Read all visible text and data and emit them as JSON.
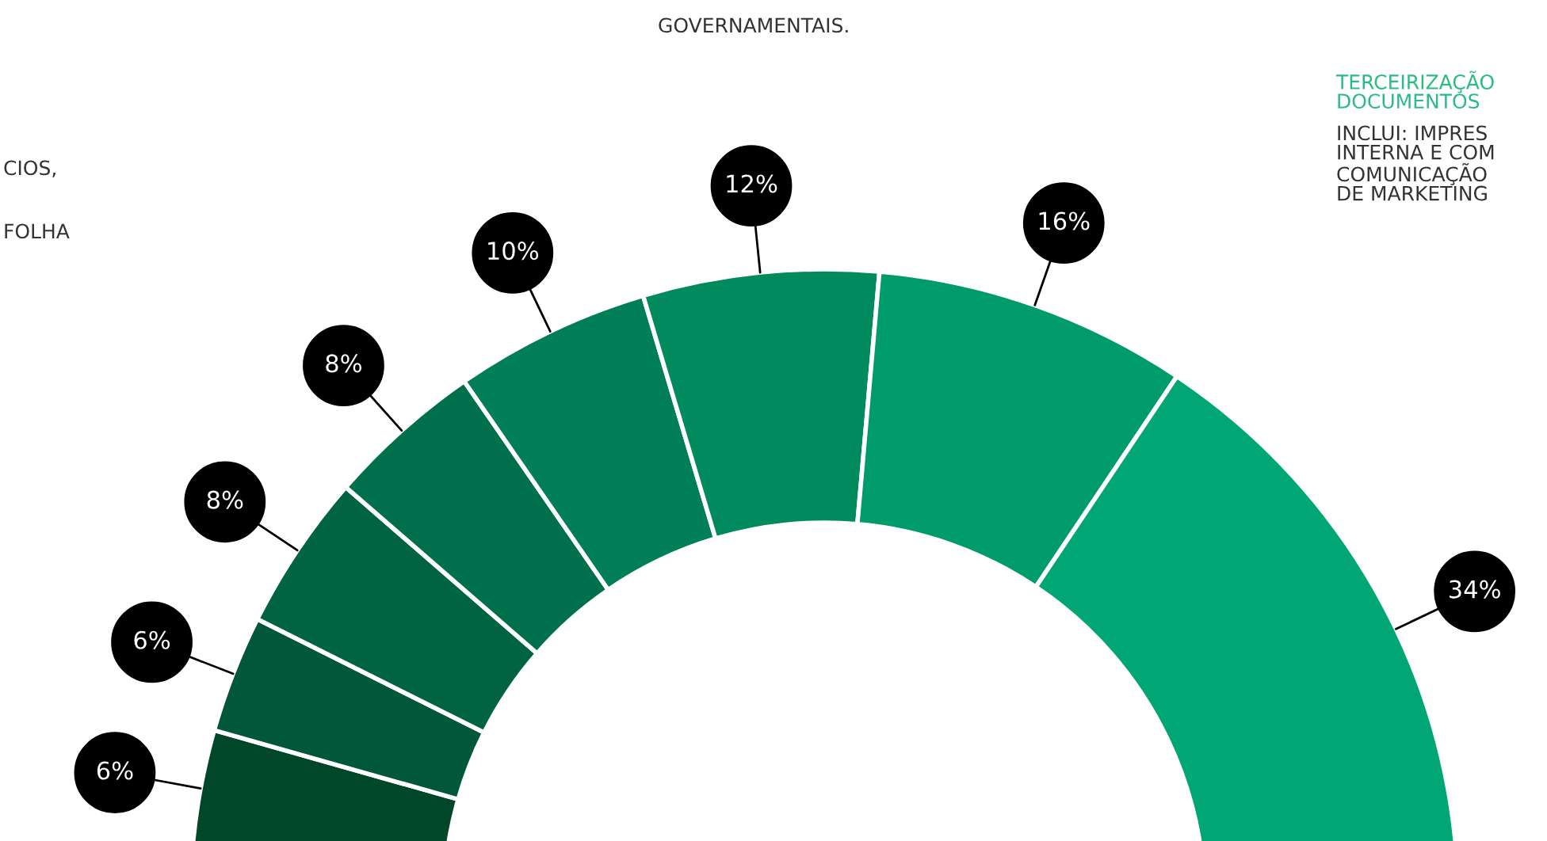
{
  "chart_data": {
    "type": "donut",
    "categories": [
      null,
      null,
      null,
      null,
      null,
      null,
      null,
      null
    ],
    "values": [
      6,
      6,
      8,
      8,
      10,
      12,
      16,
      34
    ],
    "value_labels": [
      "6%",
      "6%",
      "8%",
      "8%",
      "10%",
      "12%",
      "16%",
      "34%"
    ],
    "colors": [
      "#00472a",
      "#00573a",
      "#006442",
      "#00704c",
      "#007e57",
      "#008a5e",
      "#009b6a",
      "#00a774"
    ],
    "annotations": [
      "CIOS,",
      "FOLHA",
      "GOVERNAMENTAIS.",
      "TERCEIRIZAÇÃO\nDOCUMENTOS",
      "INCLUI: IMPRES\nINTERNA E COM\nCOMUNICAÇÃO\nDE MARKETING"
    ],
    "legend": false
  }
}
